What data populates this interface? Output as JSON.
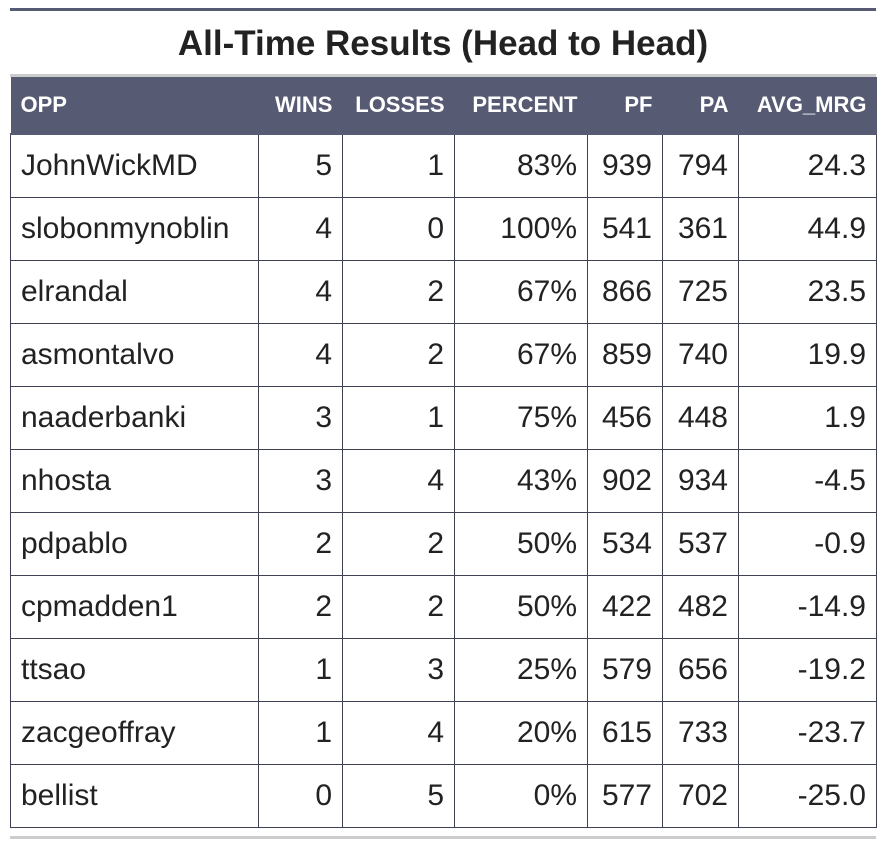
{
  "chart_data": {
    "type": "table",
    "title": "All-Time Results (Head to Head)",
    "columns": [
      "OPP",
      "WINS",
      "LOSSES",
      "PERCENT",
      "PF",
      "PA",
      "AVG_MRG"
    ],
    "rows": [
      [
        "JohnWickMD",
        "5",
        "1",
        "83%",
        "939",
        "794",
        "24.3"
      ],
      [
        "slobonmynoblin",
        "4",
        "0",
        "100%",
        "541",
        "361",
        "44.9"
      ],
      [
        "elrandal",
        "4",
        "2",
        "67%",
        "866",
        "725",
        "23.5"
      ],
      [
        "asmontalvo",
        "4",
        "2",
        "67%",
        "859",
        "740",
        "19.9"
      ],
      [
        "naaderbanki",
        "3",
        "1",
        "75%",
        "456",
        "448",
        "1.9"
      ],
      [
        "nhosta",
        "3",
        "4",
        "43%",
        "902",
        "934",
        "-4.5"
      ],
      [
        "pdpablo",
        "2",
        "2",
        "50%",
        "534",
        "537",
        "-0.9"
      ],
      [
        "cpmadden1",
        "2",
        "2",
        "50%",
        "422",
        "482",
        "-14.9"
      ],
      [
        "ttsao",
        "1",
        "3",
        "25%",
        "579",
        "656",
        "-19.2"
      ],
      [
        "zacgeoffray",
        "1",
        "4",
        "20%",
        "615",
        "733",
        "-23.7"
      ],
      [
        "bellist",
        "0",
        "5",
        "0%",
        "577",
        "702",
        "-25.0"
      ]
    ]
  },
  "colors": {
    "header_bg": "#565a73",
    "header_text": "#ffffff",
    "border": "#3f4255",
    "rule": "#cccccc"
  }
}
